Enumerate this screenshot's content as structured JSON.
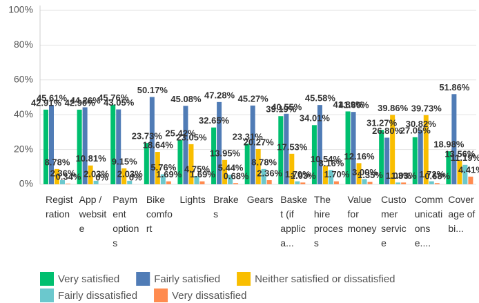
{
  "chart_data": {
    "type": "bar",
    "categories": [
      "Registration",
      "App / website",
      "Payment options",
      "Bike comfort",
      "Lights",
      "Brakes",
      "Gears",
      "Basket (if applica...",
      "The hire process",
      "Value for money",
      "Customer service",
      "Communications e....",
      "Coverage of bi..."
    ],
    "series": [
      {
        "name": "Very satisfied",
        "color": "#00bf6f",
        "values": [
          42.91,
          42.9,
          45.76,
          23.73,
          25.42,
          32.65,
          23.31,
          39.19,
          34.01,
          41.89,
          31.27,
          27.05,
          18.98
        ],
        "value_labels": [
          "42.91%",
          "42.90%",
          "45.76%",
          "23.73%",
          "25.42%",
          "32.65%",
          "23.31%",
          "39.19%",
          "34.01%",
          "41.89%",
          "31.27%",
          "27.05%",
          "18.98%"
        ]
      },
      {
        "name": "Fairly satisfied",
        "color": "#507cb6",
        "values": [
          45.61,
          44.26,
          43.05,
          50.17,
          45.08,
          47.28,
          45.27,
          40.55,
          45.58,
          41.6,
          26.8,
          30.82,
          51.86
        ],
        "value_labels": [
          "45.61%",
          "44.26%",
          "43.05%",
          "50.17%",
          "45.08%",
          "47.28%",
          "45.27%",
          "40.55%",
          "45.58%",
          "41.60%",
          "26.80%",
          "30.82%",
          "51.86%"
        ]
      },
      {
        "name": "Neither satisfied or dissatisfied",
        "color": "#f9be00",
        "values": [
          8.78,
          10.81,
          9.15,
          18.64,
          23.05,
          13.95,
          20.27,
          17.53,
          10.54,
          12.16,
          39.86,
          39.73,
          13.56
        ],
        "value_labels": [
          "8.78%",
          "10.81%",
          "9.15%",
          "18.64%",
          "23.05%",
          "13.95%",
          "20.27%",
          "17.53%",
          "10.54%",
          "12.16%",
          "39.86%",
          "39.73%",
          "13.56%"
        ]
      },
      {
        "name": "Fairly dissatisfied",
        "color": "#6bc8cd",
        "values": [
          2.36,
          2.03,
          2.03,
          5.76,
          4.75,
          5.44,
          8.78,
          1.7,
          8.16,
          3.0,
          1.03,
          1.72,
          11.19
        ],
        "value_labels": [
          "2.36%",
          "2.03%",
          "2.03%",
          "5.76%",
          "4.75%",
          "5.44%",
          "8.78%",
          "1.70%",
          "8.16%",
          "3.00%",
          "1.03%",
          "1.72%",
          "11.19%"
        ]
      },
      {
        "name": "Very dissatisfied",
        "color": "#ff8b4f",
        "values": [
          0.34,
          0,
          0,
          1.69,
          1.69,
          0.68,
          2.36,
          1.03,
          1.7,
          1.35,
          1.03,
          0.68,
          4.41
        ],
        "value_labels": [
          "0.34%",
          "0%",
          "0%",
          "1.69%",
          "1.69%",
          "0.68%",
          "2.36%",
          "1.03%",
          "1.70%",
          "1.35%",
          "1.03%",
          "0.68%",
          "4.41%"
        ]
      }
    ],
    "ylim": [
      0,
      100
    ],
    "yticks": [
      {
        "value": 0,
        "label": "0%"
      },
      {
        "value": 20,
        "label": "20%"
      },
      {
        "value": 40,
        "label": "40%"
      },
      {
        "value": 60,
        "label": "60%"
      },
      {
        "value": 80,
        "label": "80%"
      },
      {
        "value": 100,
        "label": "100%"
      }
    ],
    "grid": true
  }
}
